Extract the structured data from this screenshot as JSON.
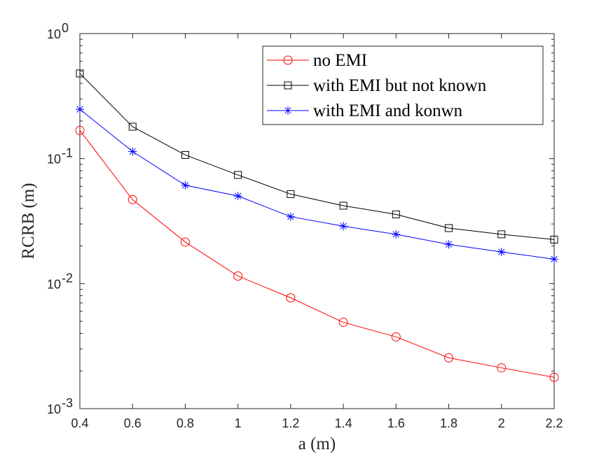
{
  "chart_data": {
    "type": "line",
    "xlabel": "a (m)",
    "ylabel": "RCRB (m)",
    "x": [
      0.4,
      0.6,
      0.8,
      1.0,
      1.2,
      1.4,
      1.6,
      1.8,
      2.0,
      2.2
    ],
    "xlim": [
      0.4,
      2.2
    ],
    "xticks": [
      "0.4",
      "0.6",
      "0.8",
      "1",
      "1.2",
      "1.4",
      "1.6",
      "1.8",
      "2",
      "2.2"
    ],
    "yscale": "log",
    "ylim": [
      0.001,
      1
    ],
    "yticks": [
      {
        "value": 1,
        "base": "10",
        "exp": "0"
      },
      {
        "value": 0.1,
        "base": "10",
        "exp": "-1"
      },
      {
        "value": 0.01,
        "base": "10",
        "exp": "-2"
      },
      {
        "value": 0.001,
        "base": "10",
        "exp": "-3"
      }
    ],
    "grid": false,
    "legend_position": "top-right",
    "series": [
      {
        "name": "no EMI",
        "color": "#ff0000",
        "marker": "circle",
        "values": [
          0.168,
          0.047,
          0.0215,
          0.0115,
          0.0077,
          0.0049,
          0.00375,
          0.00255,
          0.00212,
          0.00178
        ]
      },
      {
        "name": "with EMI but not known",
        "color": "#000000",
        "marker": "square",
        "values": [
          0.48,
          0.18,
          0.107,
          0.074,
          0.052,
          0.042,
          0.0358,
          0.0278,
          0.0248,
          0.0225
        ]
      },
      {
        "name": "with EMI and konwn",
        "color": "#0000ff",
        "marker": "asterisk",
        "values": [
          0.248,
          0.114,
          0.0612,
          0.0502,
          0.0343,
          0.0288,
          0.0248,
          0.0206,
          0.0179,
          0.0157
        ]
      }
    ]
  }
}
